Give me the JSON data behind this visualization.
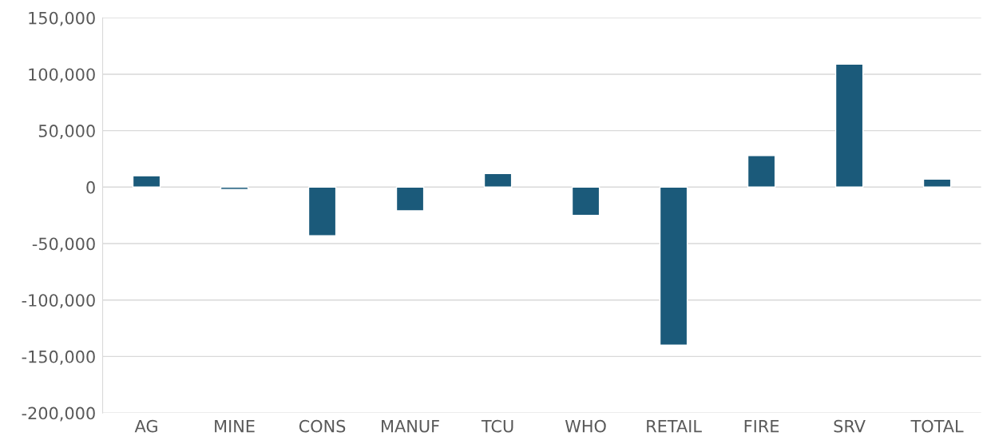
{
  "chart_data": {
    "type": "bar",
    "categories": [
      "AG",
      "MINE",
      "CONS",
      "MANUF",
      "TCU",
      "WHO",
      "RETAIL",
      "FIRE",
      "SRV",
      "TOTAL"
    ],
    "values": [
      10000,
      -2000,
      -43000,
      -21000,
      12000,
      -25000,
      -140000,
      28000,
      109000,
      7000
    ],
    "color": "#1b5a7a",
    "ylim": [
      -200000,
      150000
    ],
    "yticks": [
      {
        "value": -200000,
        "label": "-200,000"
      },
      {
        "value": -150000,
        "label": "-150,000"
      },
      {
        "value": -100000,
        "label": "-100,000"
      },
      {
        "value": -50000,
        "label": "-50,000"
      },
      0,
      {
        "value": 50000,
        "label": "50,000"
      },
      {
        "value": 100000,
        "label": "100,000"
      },
      {
        "value": 150000,
        "label": "150,000"
      }
    ],
    "grid": "y"
  }
}
